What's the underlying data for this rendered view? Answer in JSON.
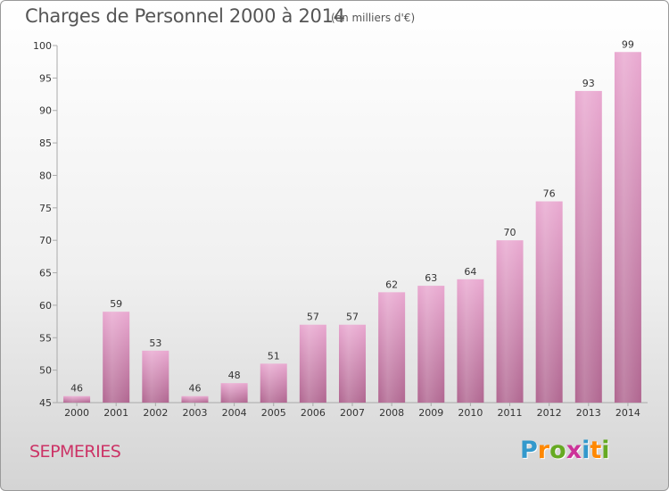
{
  "header": {
    "title": "Charges de Personnel 2000 à 2014",
    "subtitle": "(en milliers d'€)"
  },
  "footer": {
    "commune": "SEPMERIES",
    "logo": {
      "letters": [
        {
          "char": "P",
          "color": "#3399cc"
        },
        {
          "char": "r",
          "color": "#ff8800"
        },
        {
          "char": "o",
          "color": "#66aa22"
        },
        {
          "char": "x",
          "color": "#cc3399"
        },
        {
          "char": "i",
          "color": "#3399cc"
        },
        {
          "char": "t",
          "color": "#ff8800"
        },
        {
          "char": "i",
          "color": "#66aa22"
        }
      ]
    }
  },
  "chart_data": {
    "type": "bar",
    "title": "Charges de Personnel 2000 à 2014",
    "subtitle": "(en milliers d'€)",
    "categories": [
      "2000",
      "2001",
      "2002",
      "2003",
      "2004",
      "2005",
      "2006",
      "2007",
      "2008",
      "2009",
      "2010",
      "2011",
      "2012",
      "2013",
      "2014"
    ],
    "values": [
      46,
      59,
      53,
      46,
      48,
      51,
      57,
      57,
      62,
      63,
      64,
      70,
      76,
      93,
      99
    ],
    "ylim": [
      45,
      100
    ],
    "yticks": [
      45,
      50,
      55,
      60,
      65,
      70,
      75,
      80,
      85,
      90,
      95,
      100
    ],
    "grid": false,
    "bar_color": "#d67fb1"
  }
}
